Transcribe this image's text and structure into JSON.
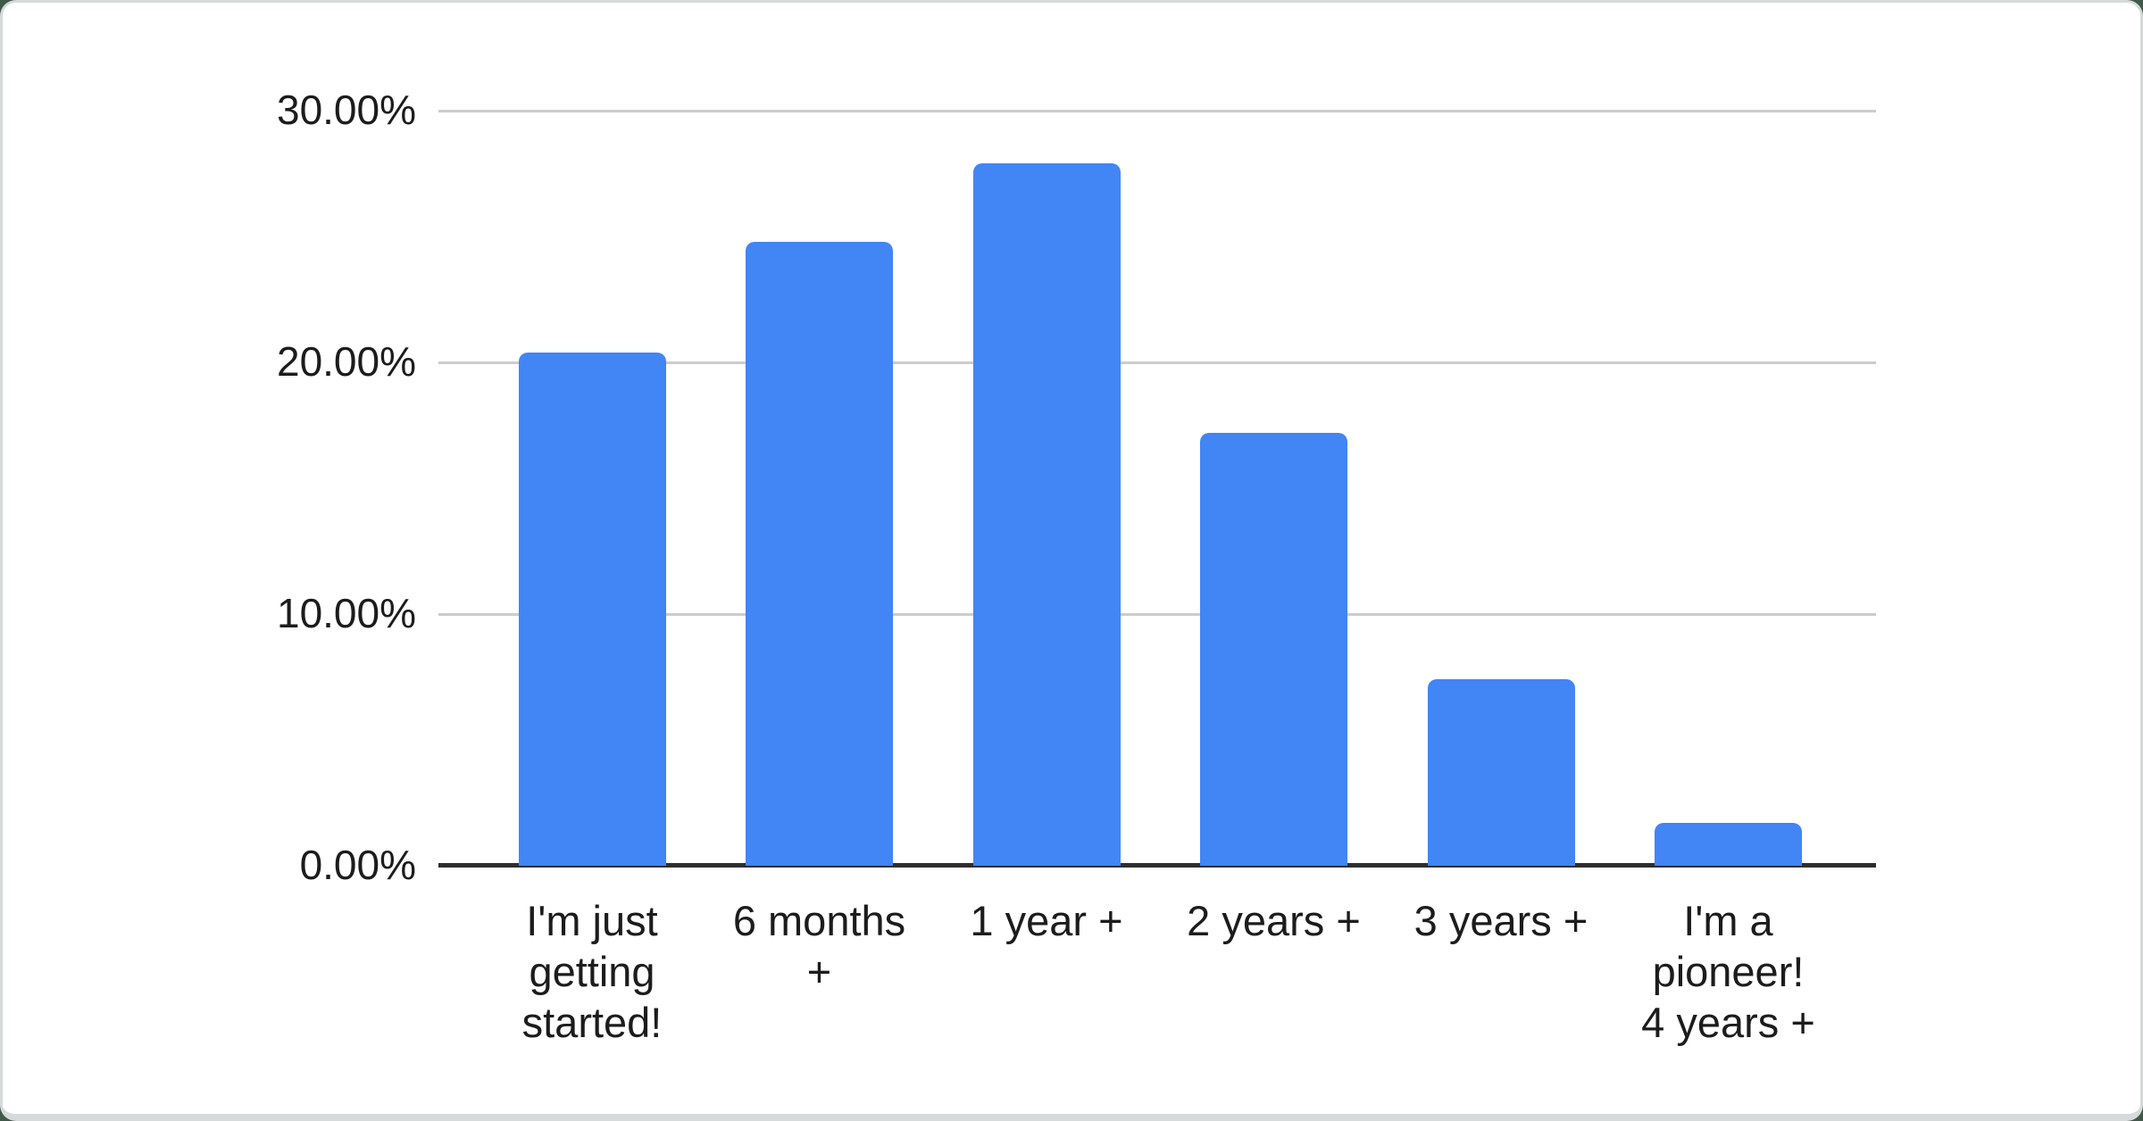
{
  "chart_data": {
    "type": "bar",
    "title": "",
    "xlabel": "",
    "ylabel": "",
    "categories": [
      "I'm just getting started!",
      "6 months +",
      "1 year +",
      "2 years +",
      "3 years +",
      "I'm a pioneer! 4 years +"
    ],
    "categories_wrapped": [
      [
        "I'm just",
        "getting",
        "started!"
      ],
      [
        "6 months",
        "+"
      ],
      [
        "1 year +"
      ],
      [
        "2 years +"
      ],
      [
        "3 years +"
      ],
      [
        "I'm a",
        "pioneer!",
        "4 years +"
      ]
    ],
    "values": [
      20.4,
      24.8,
      27.9,
      17.2,
      7.4,
      1.7
    ],
    "unit": "%",
    "ylim": [
      0,
      30
    ],
    "yticks": [
      {
        "label": "0.00%",
        "value": 0
      },
      {
        "label": "10.00%",
        "value": 10
      },
      {
        "label": "20.00%",
        "value": 20
      },
      {
        "label": "30.00%",
        "value": 30
      }
    ],
    "grid": true,
    "legend": false
  },
  "colors": {
    "bar": "#4285f4",
    "gridline": "#cccccc",
    "axis_line": "#2e2e2e",
    "text": "#1c1c1c",
    "card_background": "#ffffff",
    "card_border": "#d6dadb",
    "page_background": "#405a48"
  }
}
